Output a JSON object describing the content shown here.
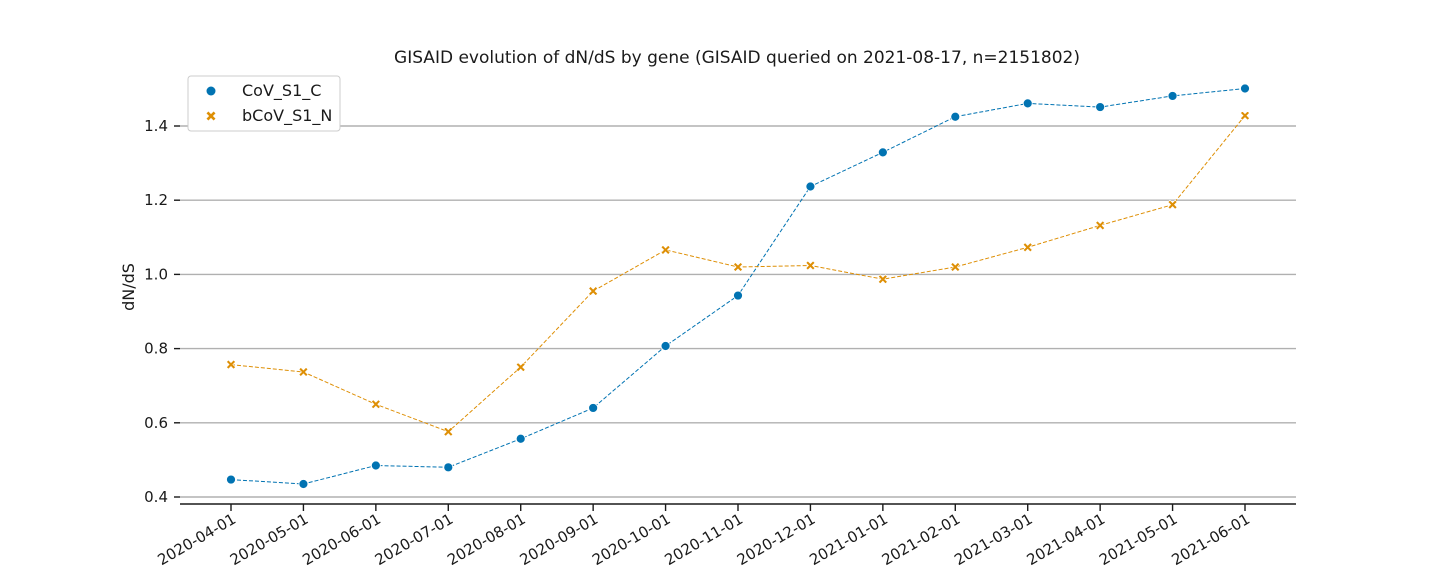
{
  "chart_data": {
    "type": "line",
    "title": "GISAID evolution of dN/dS by gene (GISAID queried on 2021-08-17, n=2151802)",
    "xlabel": "",
    "ylabel": "dN/dS",
    "ylim": [
      0.38,
      1.54
    ],
    "yticks": [
      "0.4",
      "0.6",
      "0.8",
      "1.0",
      "1.2",
      "1.4"
    ],
    "grid": "horizontal",
    "legend_position": "top-left",
    "x": [
      "2020-04-01",
      "2020-05-01",
      "2020-06-01",
      "2020-07-01",
      "2020-08-01",
      "2020-09-01",
      "2020-10-01",
      "2020-11-01",
      "2020-12-01",
      "2021-01-01",
      "2021-02-01",
      "2021-03-01",
      "2021-04-01",
      "2021-05-01",
      "2021-06-01"
    ],
    "series": [
      {
        "name": "CoV_S1_C",
        "marker": "circle",
        "color": "#0173b2",
        "values": [
          0.447,
          0.435,
          0.485,
          0.48,
          0.557,
          0.64,
          0.807,
          0.943,
          1.237,
          1.329,
          1.425,
          1.461,
          1.451,
          1.481,
          1.501
        ]
      },
      {
        "name": "bCoV_S1_N",
        "marker": "x",
        "color": "#de8f05",
        "values": [
          0.757,
          0.737,
          0.65,
          0.576,
          0.75,
          0.955,
          1.066,
          1.02,
          1.024,
          0.987,
          1.02,
          1.073,
          1.132,
          1.188,
          1.428
        ]
      }
    ]
  }
}
